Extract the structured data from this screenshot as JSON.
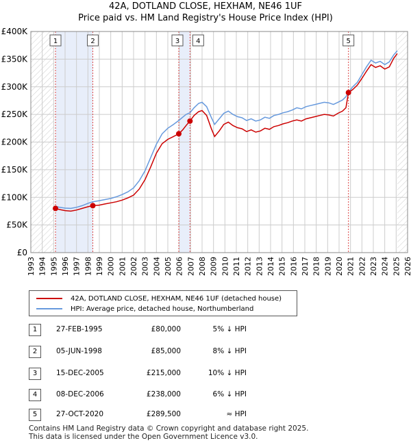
{
  "title": "42A, DOTLAND CLOSE, HEXHAM, NE46 1UF",
  "subtitle": "Price paid vs. HM Land Registry's House Price Index (HPI)",
  "colors": {
    "price_paid": "#cc0000",
    "hpi": "#6699dd",
    "shade": "#e8eefa",
    "marker_line": "#dd4444",
    "grid": "#cccccc"
  },
  "chart_data": {
    "type": "line",
    "xlim": [
      1993,
      2026
    ],
    "ylim": [
      0,
      400000
    ],
    "x_ticks": [
      "1993",
      "1994",
      "1995",
      "1996",
      "1997",
      "1998",
      "1999",
      "2000",
      "2001",
      "2002",
      "2003",
      "2004",
      "2005",
      "2006",
      "2007",
      "2008",
      "2009",
      "2010",
      "2011",
      "2012",
      "2013",
      "2014",
      "2015",
      "2016",
      "2017",
      "2018",
      "2019",
      "2020",
      "2021",
      "2022",
      "2023",
      "2024",
      "2025",
      "2026"
    ],
    "y_ticks": [
      {
        "value": 0,
        "label": "£0"
      },
      {
        "value": 50000,
        "label": "£50K"
      },
      {
        "value": 100000,
        "label": "£100K"
      },
      {
        "value": 150000,
        "label": "£150K"
      },
      {
        "value": 200000,
        "label": "£200K"
      },
      {
        "value": 250000,
        "label": "£250K"
      },
      {
        "value": 300000,
        "label": "£300K"
      },
      {
        "value": 350000,
        "label": "£350K"
      },
      {
        "value": 400000,
        "label": "£400K"
      }
    ],
    "grid": true,
    "hatched_ranges": [
      [
        1993,
        1995.0
      ],
      [
        2025.1,
        2026
      ]
    ],
    "shaded_ranges": [
      [
        1995.16,
        1998.43
      ],
      [
        2005.96,
        2006.94
      ]
    ],
    "series": [
      {
        "name": "42A, DOTLAND CLOSE, HEXHAM, NE46 1UF (detached house)",
        "color": "#cc0000",
        "points": [
          [
            1995.16,
            80000
          ],
          [
            1995.5,
            78000
          ],
          [
            1996.0,
            76000
          ],
          [
            1996.5,
            75000
          ],
          [
            1997.0,
            77000
          ],
          [
            1997.5,
            80000
          ],
          [
            1998.0,
            83000
          ],
          [
            1998.43,
            85000
          ],
          [
            1999.0,
            86000
          ],
          [
            1999.5,
            88000
          ],
          [
            2000.0,
            90000
          ],
          [
            2000.5,
            92000
          ],
          [
            2001.0,
            95000
          ],
          [
            2001.5,
            99000
          ],
          [
            2002.0,
            104000
          ],
          [
            2002.5,
            115000
          ],
          [
            2003.0,
            132000
          ],
          [
            2003.5,
            155000
          ],
          [
            2004.0,
            180000
          ],
          [
            2004.5,
            197000
          ],
          [
            2005.0,
            205000
          ],
          [
            2005.5,
            210000
          ],
          [
            2005.96,
            215000
          ],
          [
            2006.3,
            222000
          ],
          [
            2006.6,
            230000
          ],
          [
            2006.94,
            238000
          ],
          [
            2007.3,
            248000
          ],
          [
            2007.7,
            255000
          ],
          [
            2008.0,
            257000
          ],
          [
            2008.4,
            248000
          ],
          [
            2008.8,
            225000
          ],
          [
            2009.1,
            210000
          ],
          [
            2009.5,
            220000
          ],
          [
            2009.9,
            232000
          ],
          [
            2010.3,
            236000
          ],
          [
            2010.7,
            230000
          ],
          [
            2011.1,
            226000
          ],
          [
            2011.5,
            224000
          ],
          [
            2011.9,
            219000
          ],
          [
            2012.3,
            222000
          ],
          [
            2012.7,
            218000
          ],
          [
            2013.1,
            220000
          ],
          [
            2013.5,
            225000
          ],
          [
            2013.9,
            223000
          ],
          [
            2014.3,
            228000
          ],
          [
            2014.7,
            230000
          ],
          [
            2015.1,
            233000
          ],
          [
            2015.5,
            235000
          ],
          [
            2015.9,
            238000
          ],
          [
            2016.3,
            240000
          ],
          [
            2016.7,
            238000
          ],
          [
            2017.1,
            242000
          ],
          [
            2017.5,
            244000
          ],
          [
            2017.9,
            246000
          ],
          [
            2018.3,
            248000
          ],
          [
            2018.7,
            250000
          ],
          [
            2019.1,
            249000
          ],
          [
            2019.5,
            247000
          ],
          [
            2019.9,
            252000
          ],
          [
            2020.3,
            256000
          ],
          [
            2020.6,
            262000
          ],
          [
            2020.82,
            289500
          ],
          [
            2021.2,
            295000
          ],
          [
            2021.6,
            303000
          ],
          [
            2022.0,
            315000
          ],
          [
            2022.4,
            328000
          ],
          [
            2022.8,
            340000
          ],
          [
            2023.2,
            335000
          ],
          [
            2023.6,
            338000
          ],
          [
            2024.0,
            332000
          ],
          [
            2024.4,
            336000
          ],
          [
            2024.8,
            352000
          ],
          [
            2025.1,
            360000
          ]
        ]
      },
      {
        "name": "HPI: Average price, detached house, Northumberland",
        "color": "#6699dd",
        "points": [
          [
            1995.16,
            84000
          ],
          [
            1995.5,
            82000
          ],
          [
            1996.0,
            80500
          ],
          [
            1996.5,
            80000
          ],
          [
            1997.0,
            82000
          ],
          [
            1997.5,
            85000
          ],
          [
            1998.0,
            89000
          ],
          [
            1998.43,
            92000
          ],
          [
            1999.0,
            94000
          ],
          [
            1999.5,
            96000
          ],
          [
            2000.0,
            98000
          ],
          [
            2000.5,
            101000
          ],
          [
            2001.0,
            105000
          ],
          [
            2001.5,
            110000
          ],
          [
            2002.0,
            117000
          ],
          [
            2002.5,
            130000
          ],
          [
            2003.0,
            148000
          ],
          [
            2003.5,
            172000
          ],
          [
            2004.0,
            196000
          ],
          [
            2004.5,
            215000
          ],
          [
            2005.0,
            225000
          ],
          [
            2005.5,
            232000
          ],
          [
            2005.96,
            239000
          ],
          [
            2006.3,
            245000
          ],
          [
            2006.6,
            250000
          ],
          [
            2006.94,
            253000
          ],
          [
            2007.3,
            262000
          ],
          [
            2007.7,
            270000
          ],
          [
            2008.0,
            272000
          ],
          [
            2008.4,
            264000
          ],
          [
            2008.8,
            245000
          ],
          [
            2009.1,
            232000
          ],
          [
            2009.5,
            242000
          ],
          [
            2009.9,
            252000
          ],
          [
            2010.3,
            256000
          ],
          [
            2010.7,
            250000
          ],
          [
            2011.1,
            246000
          ],
          [
            2011.5,
            244000
          ],
          [
            2011.9,
            239000
          ],
          [
            2012.3,
            242000
          ],
          [
            2012.7,
            238000
          ],
          [
            2013.1,
            240000
          ],
          [
            2013.5,
            245000
          ],
          [
            2013.9,
            243000
          ],
          [
            2014.3,
            248000
          ],
          [
            2014.7,
            250000
          ],
          [
            2015.1,
            253000
          ],
          [
            2015.5,
            255000
          ],
          [
            2015.9,
            258000
          ],
          [
            2016.3,
            262000
          ],
          [
            2016.7,
            260000
          ],
          [
            2017.1,
            264000
          ],
          [
            2017.5,
            266000
          ],
          [
            2017.9,
            268000
          ],
          [
            2018.3,
            270000
          ],
          [
            2018.7,
            272000
          ],
          [
            2019.1,
            271000
          ],
          [
            2019.5,
            268000
          ],
          [
            2019.9,
            272000
          ],
          [
            2020.3,
            276000
          ],
          [
            2020.6,
            282000
          ],
          [
            2020.82,
            290000
          ],
          [
            2021.2,
            300000
          ],
          [
            2021.6,
            308000
          ],
          [
            2022.0,
            322000
          ],
          [
            2022.4,
            336000
          ],
          [
            2022.8,
            348000
          ],
          [
            2023.2,
            343000
          ],
          [
            2023.6,
            346000
          ],
          [
            2024.0,
            340000
          ],
          [
            2024.4,
            345000
          ],
          [
            2024.8,
            358000
          ],
          [
            2025.1,
            365000
          ]
        ]
      }
    ],
    "sales": [
      {
        "id": "1",
        "x": 1995.16,
        "y": 80000
      },
      {
        "id": "2",
        "x": 1998.43,
        "y": 85000
      },
      {
        "id": "3",
        "x": 2005.96,
        "y": 215000
      },
      {
        "id": "4",
        "x": 2006.94,
        "y": 238000
      },
      {
        "id": "5",
        "x": 2020.82,
        "y": 289500
      }
    ]
  },
  "legend": {
    "items": [
      {
        "label": "42A, DOTLAND CLOSE, HEXHAM, NE46 1UF (detached house)",
        "color": "#cc0000"
      },
      {
        "label": "HPI: Average price, detached house, Northumberland",
        "color": "#6699dd"
      }
    ]
  },
  "sales_table": [
    {
      "num": "1",
      "date": "27-FEB-1995",
      "price": "£80,000",
      "delta": "5% ↓ HPI"
    },
    {
      "num": "2",
      "date": "05-JUN-1998",
      "price": "£85,000",
      "delta": "8% ↓ HPI"
    },
    {
      "num": "3",
      "date": "15-DEC-2005",
      "price": "£215,000",
      "delta": "10% ↓ HPI"
    },
    {
      "num": "4",
      "date": "08-DEC-2006",
      "price": "£238,000",
      "delta": "6% ↓ HPI"
    },
    {
      "num": "5",
      "date": "27-OCT-2020",
      "price": "£289,500",
      "delta": "≈ HPI"
    }
  ],
  "footer": {
    "line1": "Contains HM Land Registry data © Crown copyright and database right 2025.",
    "line2": "This data is licensed under the Open Government Licence v3.0."
  }
}
